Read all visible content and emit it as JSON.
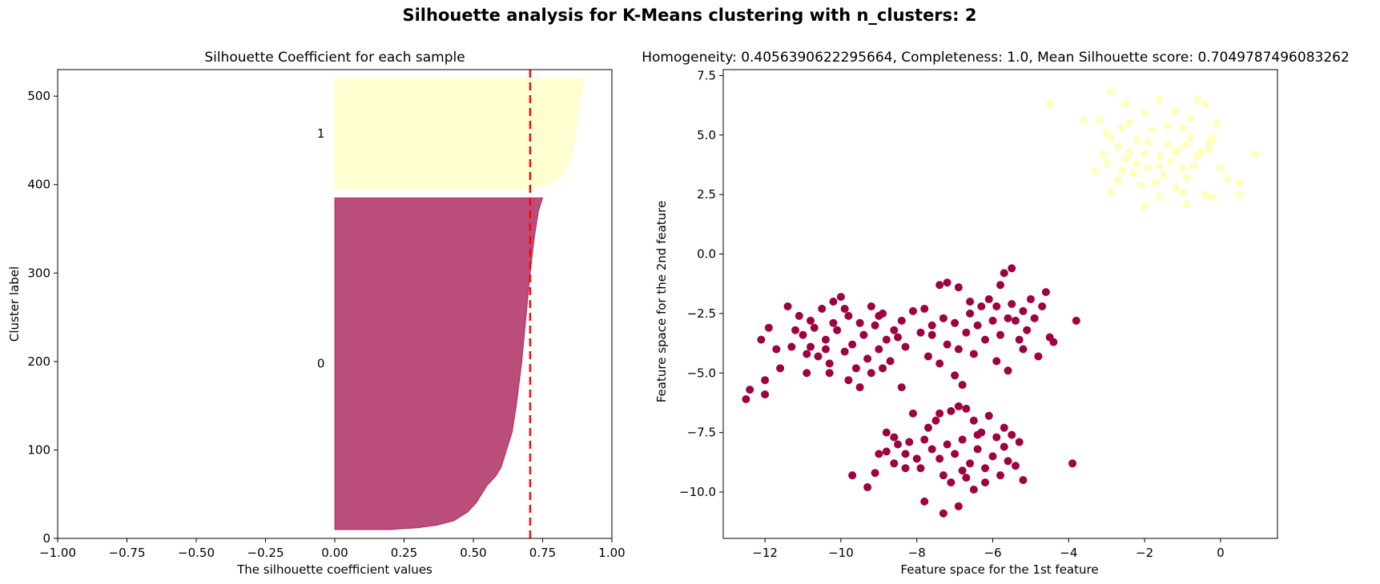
{
  "figure": {
    "suptitle": "Silhouette analysis for K-Means clustering with n_clusters: 2"
  },
  "colors": {
    "cluster0": "#9e0142",
    "cluster1": "#ffffbf",
    "mean_line": "#ff0000"
  },
  "chart_data": [
    {
      "type": "area",
      "orientation": "horizontal",
      "title": "Silhouette Coefficient for each sample",
      "xlabel": "The silhouette coefficient values",
      "ylabel": "Cluster label",
      "xlim": [
        -1.0,
        1.0
      ],
      "ylim": [
        0,
        530
      ],
      "grid": false,
      "xticks": [
        -1.0,
        -0.75,
        -0.5,
        -0.25,
        0.0,
        0.25,
        0.5,
        0.75,
        1.0
      ],
      "xtick_labels": [
        "−1.00",
        "−0.75",
        "−0.50",
        "−0.25",
        "0.00",
        "0.25",
        "0.50",
        "0.75",
        "1.00"
      ],
      "yticks": [
        0,
        100,
        200,
        300,
        400,
        500
      ],
      "ytick_labels": [
        "0",
        "100",
        "200",
        "300",
        "400",
        "500"
      ],
      "mean_silhouette_line": 0.705,
      "series": [
        {
          "cluster_label": "0",
          "color": "#9e0142",
          "y_range": [
            10,
            385
          ],
          "profile_y": [
            10,
            12,
            15,
            20,
            30,
            40,
            50,
            60,
            70,
            80,
            100,
            120,
            150,
            200,
            250,
            300,
            340,
            370,
            385
          ],
          "profile_x": [
            0.2,
            0.3,
            0.37,
            0.43,
            0.48,
            0.51,
            0.53,
            0.55,
            0.58,
            0.6,
            0.62,
            0.64,
            0.655,
            0.675,
            0.69,
            0.705,
            0.72,
            0.735,
            0.75
          ]
        },
        {
          "cluster_label": "1",
          "color": "#ffffbf",
          "y_range": [
            395,
            520
          ],
          "profile_y": [
            395,
            398,
            402,
            410,
            420,
            440,
            460,
            480,
            500,
            520
          ],
          "profile_x": [
            0.7,
            0.76,
            0.79,
            0.82,
            0.84,
            0.86,
            0.87,
            0.88,
            0.89,
            0.9
          ]
        }
      ]
    },
    {
      "type": "scatter",
      "title": "Homogeneity: 0.4056390622295664, Completeness: 1.0, Mean Silhouette score: 0.7049787496083262",
      "xlabel": "Feature space for the 1st feature",
      "ylabel": "Feature space for the 2nd feature",
      "xlim": [
        -13.1,
        1.5
      ],
      "ylim": [
        -11.95,
        7.75
      ],
      "grid": false,
      "xticks": [
        -12,
        -10,
        -8,
        -6,
        -4,
        -2,
        0
      ],
      "xtick_labels": [
        "−12",
        "−10",
        "−8",
        "−6",
        "−4",
        "−2",
        "0"
      ],
      "yticks": [
        -10.0,
        -7.5,
        -5.0,
        -2.5,
        0.0,
        2.5,
        5.0,
        7.5
      ],
      "ytick_labels": [
        "−10.0",
        "−7.5",
        "−5.0",
        "−2.5",
        "0.0",
        "2.5",
        "5.0",
        "7.5"
      ],
      "series": [
        {
          "cluster": 1,
          "color": "#ffffbf",
          "points": [
            [
              -2.9,
              6.8
            ],
            [
              -2.5,
              6.3
            ],
            [
              -1.6,
              6.5
            ],
            [
              -0.6,
              6.5
            ],
            [
              -0.4,
              6.3
            ],
            [
              -4.5,
              6.3
            ],
            [
              -1.2,
              6.0
            ],
            [
              -2.0,
              5.9
            ],
            [
              -3.2,
              5.6
            ],
            [
              -0.1,
              5.5
            ],
            [
              -2.4,
              5.5
            ],
            [
              -1.0,
              5.3
            ],
            [
              -1.8,
              5.2
            ],
            [
              -3.0,
              5.1
            ],
            [
              -0.8,
              4.9
            ],
            [
              -2.2,
              4.8
            ],
            [
              -0.3,
              4.7
            ],
            [
              -1.4,
              4.6
            ],
            [
              -2.7,
              4.5
            ],
            [
              -1.1,
              4.4
            ],
            [
              -0.5,
              4.3
            ],
            [
              -2.0,
              4.2
            ],
            [
              -1.6,
              4.1
            ],
            [
              -2.5,
              4.0
            ],
            [
              0.9,
              4.2
            ],
            [
              -1.3,
              3.9
            ],
            [
              -3.0,
              3.8
            ],
            [
              -0.7,
              3.7
            ],
            [
              -1.9,
              3.6
            ],
            [
              0.0,
              3.6
            ],
            [
              -2.3,
              3.4
            ],
            [
              -1.5,
              3.3
            ],
            [
              -3.3,
              3.5
            ],
            [
              -0.9,
              3.2
            ],
            [
              -2.7,
              3.1
            ],
            [
              0.2,
              3.1
            ],
            [
              -1.7,
              3.0
            ],
            [
              -2.1,
              2.9
            ],
            [
              0.5,
              3.0
            ],
            [
              -1.2,
              2.8
            ],
            [
              -2.9,
              2.6
            ],
            [
              -0.4,
              2.5
            ],
            [
              -1.0,
              2.6
            ],
            [
              -1.6,
              2.4
            ],
            [
              0.5,
              2.5
            ],
            [
              -2.0,
              2.0
            ],
            [
              -0.9,
              2.1
            ],
            [
              -0.2,
              2.4
            ],
            [
              -3.6,
              5.6
            ],
            [
              -2.6,
              5.3
            ],
            [
              -1.4,
              5.4
            ],
            [
              -0.8,
              5.7
            ],
            [
              -2.9,
              4.9
            ],
            [
              -1.9,
              4.7
            ],
            [
              -0.9,
              4.6
            ],
            [
              -0.2,
              4.9
            ],
            [
              -2.4,
              4.3
            ],
            [
              -1.2,
              4.3
            ],
            [
              -0.6,
              4.1
            ],
            [
              -3.1,
              4.2
            ],
            [
              -2.2,
              3.8
            ],
            [
              -1.0,
              3.6
            ],
            [
              -1.6,
              3.7
            ],
            [
              -2.6,
              3.5
            ],
            [
              -0.3,
              4.4
            ]
          ]
        },
        {
          "cluster": 0,
          "color": "#9e0142",
          "points": [
            [
              -12.5,
              -6.1
            ],
            [
              -12.4,
              -5.7
            ],
            [
              -12.0,
              -5.9
            ],
            [
              -12.0,
              -5.3
            ],
            [
              -12.1,
              -3.6
            ],
            [
              -11.9,
              -3.1
            ],
            [
              -11.7,
              -4.0
            ],
            [
              -11.6,
              -4.8
            ],
            [
              -11.4,
              -2.2
            ],
            [
              -11.3,
              -3.9
            ],
            [
              -11.1,
              -2.6
            ],
            [
              -11.0,
              -3.4
            ],
            [
              -10.9,
              -4.2
            ],
            [
              -10.8,
              -2.8
            ],
            [
              -10.7,
              -3.1
            ],
            [
              -10.6,
              -4.3
            ],
            [
              -10.5,
              -2.3
            ],
            [
              -10.4,
              -3.6
            ],
            [
              -10.3,
              -4.6
            ],
            [
              -10.2,
              -2.0
            ],
            [
              -10.1,
              -3.2
            ],
            [
              -10.0,
              -1.8
            ],
            [
              -9.9,
              -4.1
            ],
            [
              -9.8,
              -2.6
            ],
            [
              -9.7,
              -3.8
            ],
            [
              -9.6,
              -4.8
            ],
            [
              -9.5,
              -2.9
            ],
            [
              -9.4,
              -3.4
            ],
            [
              -9.3,
              -4.4
            ],
            [
              -9.2,
              -2.2
            ],
            [
              -9.1,
              -3.0
            ],
            [
              -9.0,
              -4.0
            ],
            [
              -8.9,
              -2.5
            ],
            [
              -8.8,
              -3.6
            ],
            [
              -8.7,
              -4.5
            ],
            [
              -8.6,
              -3.2
            ],
            [
              -8.4,
              -2.8
            ],
            [
              -8.3,
              -3.9
            ],
            [
              -8.1,
              -2.4
            ],
            [
              -7.9,
              -3.3
            ],
            [
              -7.7,
              -4.3
            ],
            [
              -7.6,
              -3.4
            ],
            [
              -10.3,
              -5.0
            ],
            [
              -9.8,
              -5.3
            ],
            [
              -10.9,
              -5.0
            ],
            [
              -9.2,
              -5.0
            ],
            [
              -9.5,
              -5.6
            ],
            [
              -8.4,
              -5.6
            ],
            [
              -7.8,
              -2.3
            ],
            [
              -7.4,
              -1.3
            ],
            [
              -7.2,
              -1.2
            ],
            [
              -6.9,
              -1.4
            ],
            [
              -6.6,
              -2.0
            ],
            [
              -6.3,
              -2.2
            ],
            [
              -6.1,
              -1.9
            ],
            [
              -5.9,
              -2.2
            ],
            [
              -5.8,
              -1.3
            ],
            [
              -5.7,
              -0.8
            ],
            [
              -5.5,
              -0.6
            ],
            [
              -5.5,
              -2.1
            ],
            [
              -5.4,
              -2.8
            ],
            [
              -5.2,
              -2.4
            ],
            [
              -5.1,
              -3.2
            ],
            [
              -5.0,
              -1.9
            ],
            [
              -4.9,
              -2.7
            ],
            [
              -4.7,
              -2.2
            ],
            [
              -4.6,
              -1.6
            ],
            [
              -4.5,
              -3.5
            ],
            [
              -4.4,
              -3.7
            ],
            [
              -4.8,
              -4.3
            ],
            [
              -5.2,
              -4.0
            ],
            [
              -5.6,
              -4.9
            ],
            [
              -5.9,
              -4.5
            ],
            [
              -6.2,
              -3.6
            ],
            [
              -6.5,
              -4.2
            ],
            [
              -6.7,
              -3.3
            ],
            [
              -7.0,
              -2.9
            ],
            [
              -7.2,
              -3.8
            ],
            [
              -7.4,
              -4.6
            ],
            [
              -7.6,
              -3.0
            ],
            [
              -7.3,
              -2.7
            ],
            [
              -7.0,
              -5.1
            ],
            [
              -6.9,
              -4.0
            ],
            [
              -6.6,
              -2.5
            ],
            [
              -6.4,
              -3.0
            ],
            [
              -6.0,
              -2.8
            ],
            [
              -5.8,
              -3.4
            ],
            [
              -5.6,
              -2.7
            ],
            [
              -5.3,
              -3.6
            ],
            [
              -6.8,
              -5.5
            ],
            [
              -3.8,
              -2.8
            ],
            [
              -8.1,
              -6.7
            ],
            [
              -7.7,
              -7.3
            ],
            [
              -7.4,
              -6.7
            ],
            [
              -7.1,
              -6.6
            ],
            [
              -6.9,
              -6.4
            ],
            [
              -6.7,
              -6.5
            ],
            [
              -6.5,
              -7.0
            ],
            [
              -6.3,
              -7.5
            ],
            [
              -6.1,
              -6.8
            ],
            [
              -5.9,
              -7.7
            ],
            [
              -5.7,
              -7.3
            ],
            [
              -5.5,
              -7.6
            ],
            [
              -5.3,
              -7.9
            ],
            [
              -8.8,
              -7.5
            ],
            [
              -8.6,
              -7.7
            ],
            [
              -8.5,
              -8.0
            ],
            [
              -8.3,
              -8.4
            ],
            [
              -8.2,
              -7.9
            ],
            [
              -8.0,
              -8.6
            ],
            [
              -7.8,
              -7.8
            ],
            [
              -7.6,
              -8.2
            ],
            [
              -7.4,
              -8.6
            ],
            [
              -7.2,
              -8.0
            ],
            [
              -7.0,
              -8.4
            ],
            [
              -6.8,
              -7.8
            ],
            [
              -6.6,
              -8.8
            ],
            [
              -6.4,
              -8.2
            ],
            [
              -6.2,
              -9.0
            ],
            [
              -6.0,
              -8.5
            ],
            [
              -5.8,
              -9.3
            ],
            [
              -5.6,
              -8.7
            ],
            [
              -5.4,
              -8.9
            ],
            [
              -5.2,
              -9.5
            ],
            [
              -9.7,
              -9.3
            ],
            [
              -9.3,
              -9.8
            ],
            [
              -9.1,
              -9.2
            ],
            [
              -8.8,
              -8.3
            ],
            [
              -8.6,
              -8.8
            ],
            [
              -7.8,
              -10.4
            ],
            [
              -7.3,
              -10.9
            ],
            [
              -6.9,
              -10.6
            ],
            [
              -7.1,
              -9.6
            ],
            [
              -6.7,
              -9.4
            ],
            [
              -6.5,
              -9.9
            ],
            [
              -6.2,
              -9.6
            ],
            [
              -3.9,
              -8.8
            ],
            [
              -7.3,
              -9.3
            ],
            [
              -6.8,
              -9.1
            ],
            [
              -7.9,
              -9.0
            ],
            [
              -8.3,
              -9.0
            ],
            [
              -9.0,
              -8.4
            ],
            [
              -7.5,
              -7.0
            ],
            [
              -6.4,
              -7.6
            ],
            [
              -5.7,
              -8.1
            ],
            [
              -10.2,
              -2.9
            ],
            [
              -10.8,
              -3.9
            ],
            [
              -11.2,
              -3.2
            ],
            [
              -9.9,
              -2.3
            ],
            [
              -9.0,
              -2.6
            ],
            [
              -8.5,
              -3.5
            ],
            [
              -8.9,
              -4.8
            ],
            [
              -10.4,
              -4.0
            ]
          ]
        }
      ]
    }
  ]
}
